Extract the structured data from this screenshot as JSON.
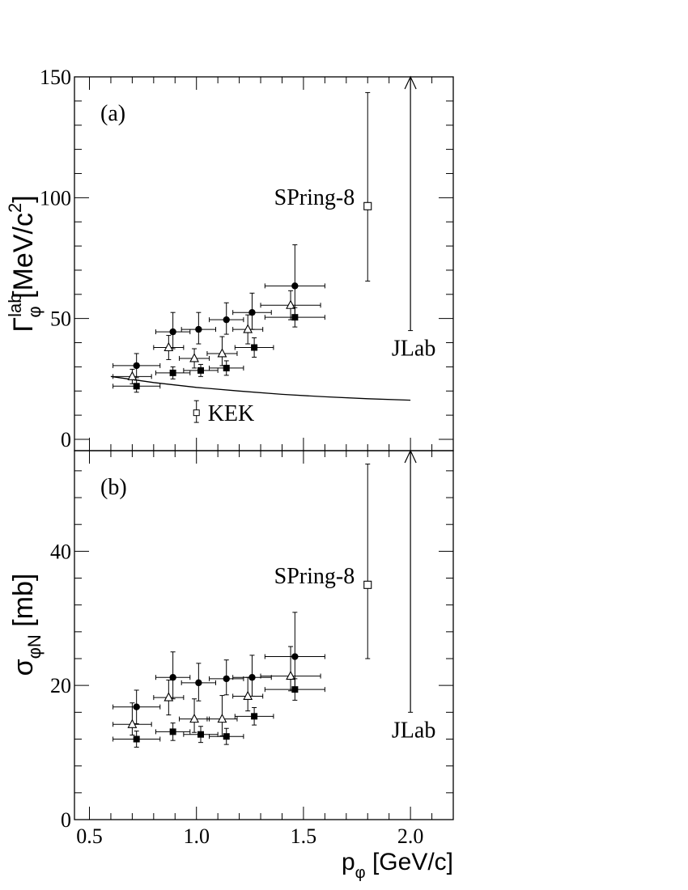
{
  "chart_data": [
    {
      "panel_label": "(a)",
      "type": "scatter",
      "ylabel": "Γ",
      "ylabel_sup": "lab",
      "ylabel_sub": "φ",
      "ylabel_units": "[MeV/c",
      "ylabel_units_sup": "2",
      "ylabel_units_end": "]",
      "xlim": [
        0.43,
        2.2
      ],
      "ylim": [
        0,
        150
      ],
      "yticks": [
        "0",
        "50",
        "100",
        "150"
      ],
      "series": [
        {
          "marker": "filled-circle",
          "points": [
            {
              "x": 0.72,
              "y": 30.5,
              "xerr": 0.11,
              "yerr_lo": 5,
              "yerr_hi": 5
            },
            {
              "x": 0.89,
              "y": 44.5,
              "xerr": 0.08,
              "yerr_lo": 7,
              "yerr_hi": 8
            },
            {
              "x": 1.01,
              "y": 45.5,
              "xerr": 0.08,
              "yerr_lo": 6,
              "yerr_hi": 7
            },
            {
              "x": 1.14,
              "y": 49.5,
              "xerr": 0.08,
              "yerr_lo": 6,
              "yerr_hi": 7
            },
            {
              "x": 1.26,
              "y": 52.5,
              "xerr": 0.09,
              "yerr_lo": 7,
              "yerr_hi": 8
            },
            {
              "x": 1.46,
              "y": 63.5,
              "xerr": 0.14,
              "yerr_lo": 13,
              "yerr_hi": 17
            }
          ]
        },
        {
          "marker": "open-triangle",
          "points": [
            {
              "x": 0.7,
              "y": 26,
              "xerr": 0.09,
              "yerr_lo": 3,
              "yerr_hi": 3
            },
            {
              "x": 0.87,
              "y": 38,
              "xerr": 0.07,
              "yerr_lo": 5,
              "yerr_hi": 5
            },
            {
              "x": 0.99,
              "y": 33.5,
              "xerr": 0.07,
              "yerr_lo": 4,
              "yerr_hi": 4
            },
            {
              "x": 1.12,
              "y": 35.5,
              "xerr": 0.07,
              "yerr_lo": 5,
              "yerr_hi": 7
            },
            {
              "x": 1.24,
              "y": 45.5,
              "xerr": 0.07,
              "yerr_lo": 6,
              "yerr_hi": 6
            },
            {
              "x": 1.44,
              "y": 55.5,
              "xerr": 0.14,
              "yerr_lo": 6,
              "yerr_hi": 6
            }
          ]
        },
        {
          "marker": "filled-square",
          "points": [
            {
              "x": 0.72,
              "y": 22,
              "xerr": 0.11,
              "yerr_lo": 2.5,
              "yerr_hi": 2.5
            },
            {
              "x": 0.89,
              "y": 27.5,
              "xerr": 0.08,
              "yerr_lo": 2.5,
              "yerr_hi": 2.5
            },
            {
              "x": 1.02,
              "y": 28.5,
              "xerr": 0.08,
              "yerr_lo": 2.5,
              "yerr_hi": 2.5
            },
            {
              "x": 1.14,
              "y": 29.5,
              "xerr": 0.08,
              "yerr_lo": 3,
              "yerr_hi": 3
            },
            {
              "x": 1.27,
              "y": 38,
              "xerr": 0.09,
              "yerr_lo": 4,
              "yerr_hi": 4
            },
            {
              "x": 1.46,
              "y": 50.5,
              "xerr": 0.14,
              "yerr_lo": 4,
              "yerr_hi": 4
            }
          ]
        }
      ],
      "curve": [
        [
          0.6,
          26
        ],
        [
          0.8,
          23.5
        ],
        [
          1.0,
          21.5
        ],
        [
          1.2,
          20
        ],
        [
          1.4,
          18.6
        ],
        [
          1.6,
          17.6
        ],
        [
          1.8,
          16.8
        ],
        [
          2.0,
          16.2
        ]
      ],
      "kek": {
        "label": "KEK",
        "x": 1.0,
        "y": 11,
        "yerr_lo": 4,
        "yerr_hi": 5
      },
      "spring8": {
        "label": "SPring-8",
        "x": 1.8,
        "y": 96.5,
        "yerr_lo": 31,
        "yerr_hi": 47
      },
      "jlab": {
        "label": "JLab",
        "x": 2.0,
        "y_lower": 45,
        "arrow_to": 150
      }
    },
    {
      "panel_label": "(b)",
      "type": "scatter",
      "ylabel": "σ",
      "ylabel_sub": "φN",
      "ylabel_units": "[mb]",
      "xlabel": "p",
      "xlabel_sub": "φ",
      "xlabel_units": "[GeV/c]",
      "xlim": [
        0.43,
        2.2
      ],
      "ylim": [
        0,
        55
      ],
      "xticks": [
        {
          "value": 0.5,
          "label": "0.5"
        },
        {
          "value": 1.0,
          "label": "1.0"
        },
        {
          "value": 1.5,
          "label": "1.5"
        },
        {
          "value": 2.0,
          "label": "2.0"
        }
      ],
      "yticks": [
        "0",
        "20",
        "40"
      ],
      "series": [
        {
          "marker": "filled-circle",
          "points": [
            {
              "x": 0.72,
              "y": 16.8,
              "xerr": 0.11,
              "yerr_lo": 2.5,
              "yerr_hi": 2.5
            },
            {
              "x": 0.89,
              "y": 21.2,
              "xerr": 0.08,
              "yerr_lo": 3.2,
              "yerr_hi": 3.8
            },
            {
              "x": 1.01,
              "y": 20.4,
              "xerr": 0.08,
              "yerr_lo": 2.7,
              "yerr_hi": 2.9
            },
            {
              "x": 1.14,
              "y": 21.0,
              "xerr": 0.08,
              "yerr_lo": 2.4,
              "yerr_hi": 2.8
            },
            {
              "x": 1.26,
              "y": 21.2,
              "xerr": 0.09,
              "yerr_lo": 2.8,
              "yerr_hi": 3.3
            },
            {
              "x": 1.46,
              "y": 24.3,
              "xerr": 0.14,
              "yerr_lo": 5.3,
              "yerr_hi": 6.6
            }
          ]
        },
        {
          "marker": "open-triangle",
          "points": [
            {
              "x": 0.7,
              "y": 14.2,
              "xerr": 0.09,
              "yerr_lo": 1.6,
              "yerr_hi": 3.2
            },
            {
              "x": 0.87,
              "y": 18.2,
              "xerr": 0.07,
              "yerr_lo": 2.6,
              "yerr_hi": 2.6
            },
            {
              "x": 0.99,
              "y": 15.0,
              "xerr": 0.07,
              "yerr_lo": 2.0,
              "yerr_hi": 3.0
            },
            {
              "x": 1.12,
              "y": 15.0,
              "xerr": 0.07,
              "yerr_lo": 2.5,
              "yerr_hi": 3.5
            },
            {
              "x": 1.24,
              "y": 18.4,
              "xerr": 0.07,
              "yerr_lo": 2.2,
              "yerr_hi": 2.8
            },
            {
              "x": 1.44,
              "y": 21.4,
              "xerr": 0.14,
              "yerr_lo": 2.2,
              "yerr_hi": 4.4
            }
          ]
        },
        {
          "marker": "filled-square",
          "points": [
            {
              "x": 0.72,
              "y": 12.0,
              "xerr": 0.11,
              "yerr_lo": 1.2,
              "yerr_hi": 1.2
            },
            {
              "x": 0.89,
              "y": 13.1,
              "xerr": 0.08,
              "yerr_lo": 1.3,
              "yerr_hi": 1.3
            },
            {
              "x": 1.02,
              "y": 12.7,
              "xerr": 0.08,
              "yerr_lo": 1.2,
              "yerr_hi": 1.2
            },
            {
              "x": 1.14,
              "y": 12.4,
              "xerr": 0.08,
              "yerr_lo": 1.2,
              "yerr_hi": 1.2
            },
            {
              "x": 1.27,
              "y": 15.4,
              "xerr": 0.09,
              "yerr_lo": 1.3,
              "yerr_hi": 1.3
            },
            {
              "x": 1.46,
              "y": 19.4,
              "xerr": 0.14,
              "yerr_lo": 1.6,
              "yerr_hi": 1.6
            }
          ]
        }
      ],
      "spring8": {
        "label": "SPring-8",
        "x": 1.8,
        "y": 35,
        "yerr_lo": 11,
        "yerr_hi": 18
      },
      "jlab": {
        "label": "JLab",
        "x": 2.0,
        "y_lower": 16,
        "arrow_to": 55
      }
    }
  ]
}
